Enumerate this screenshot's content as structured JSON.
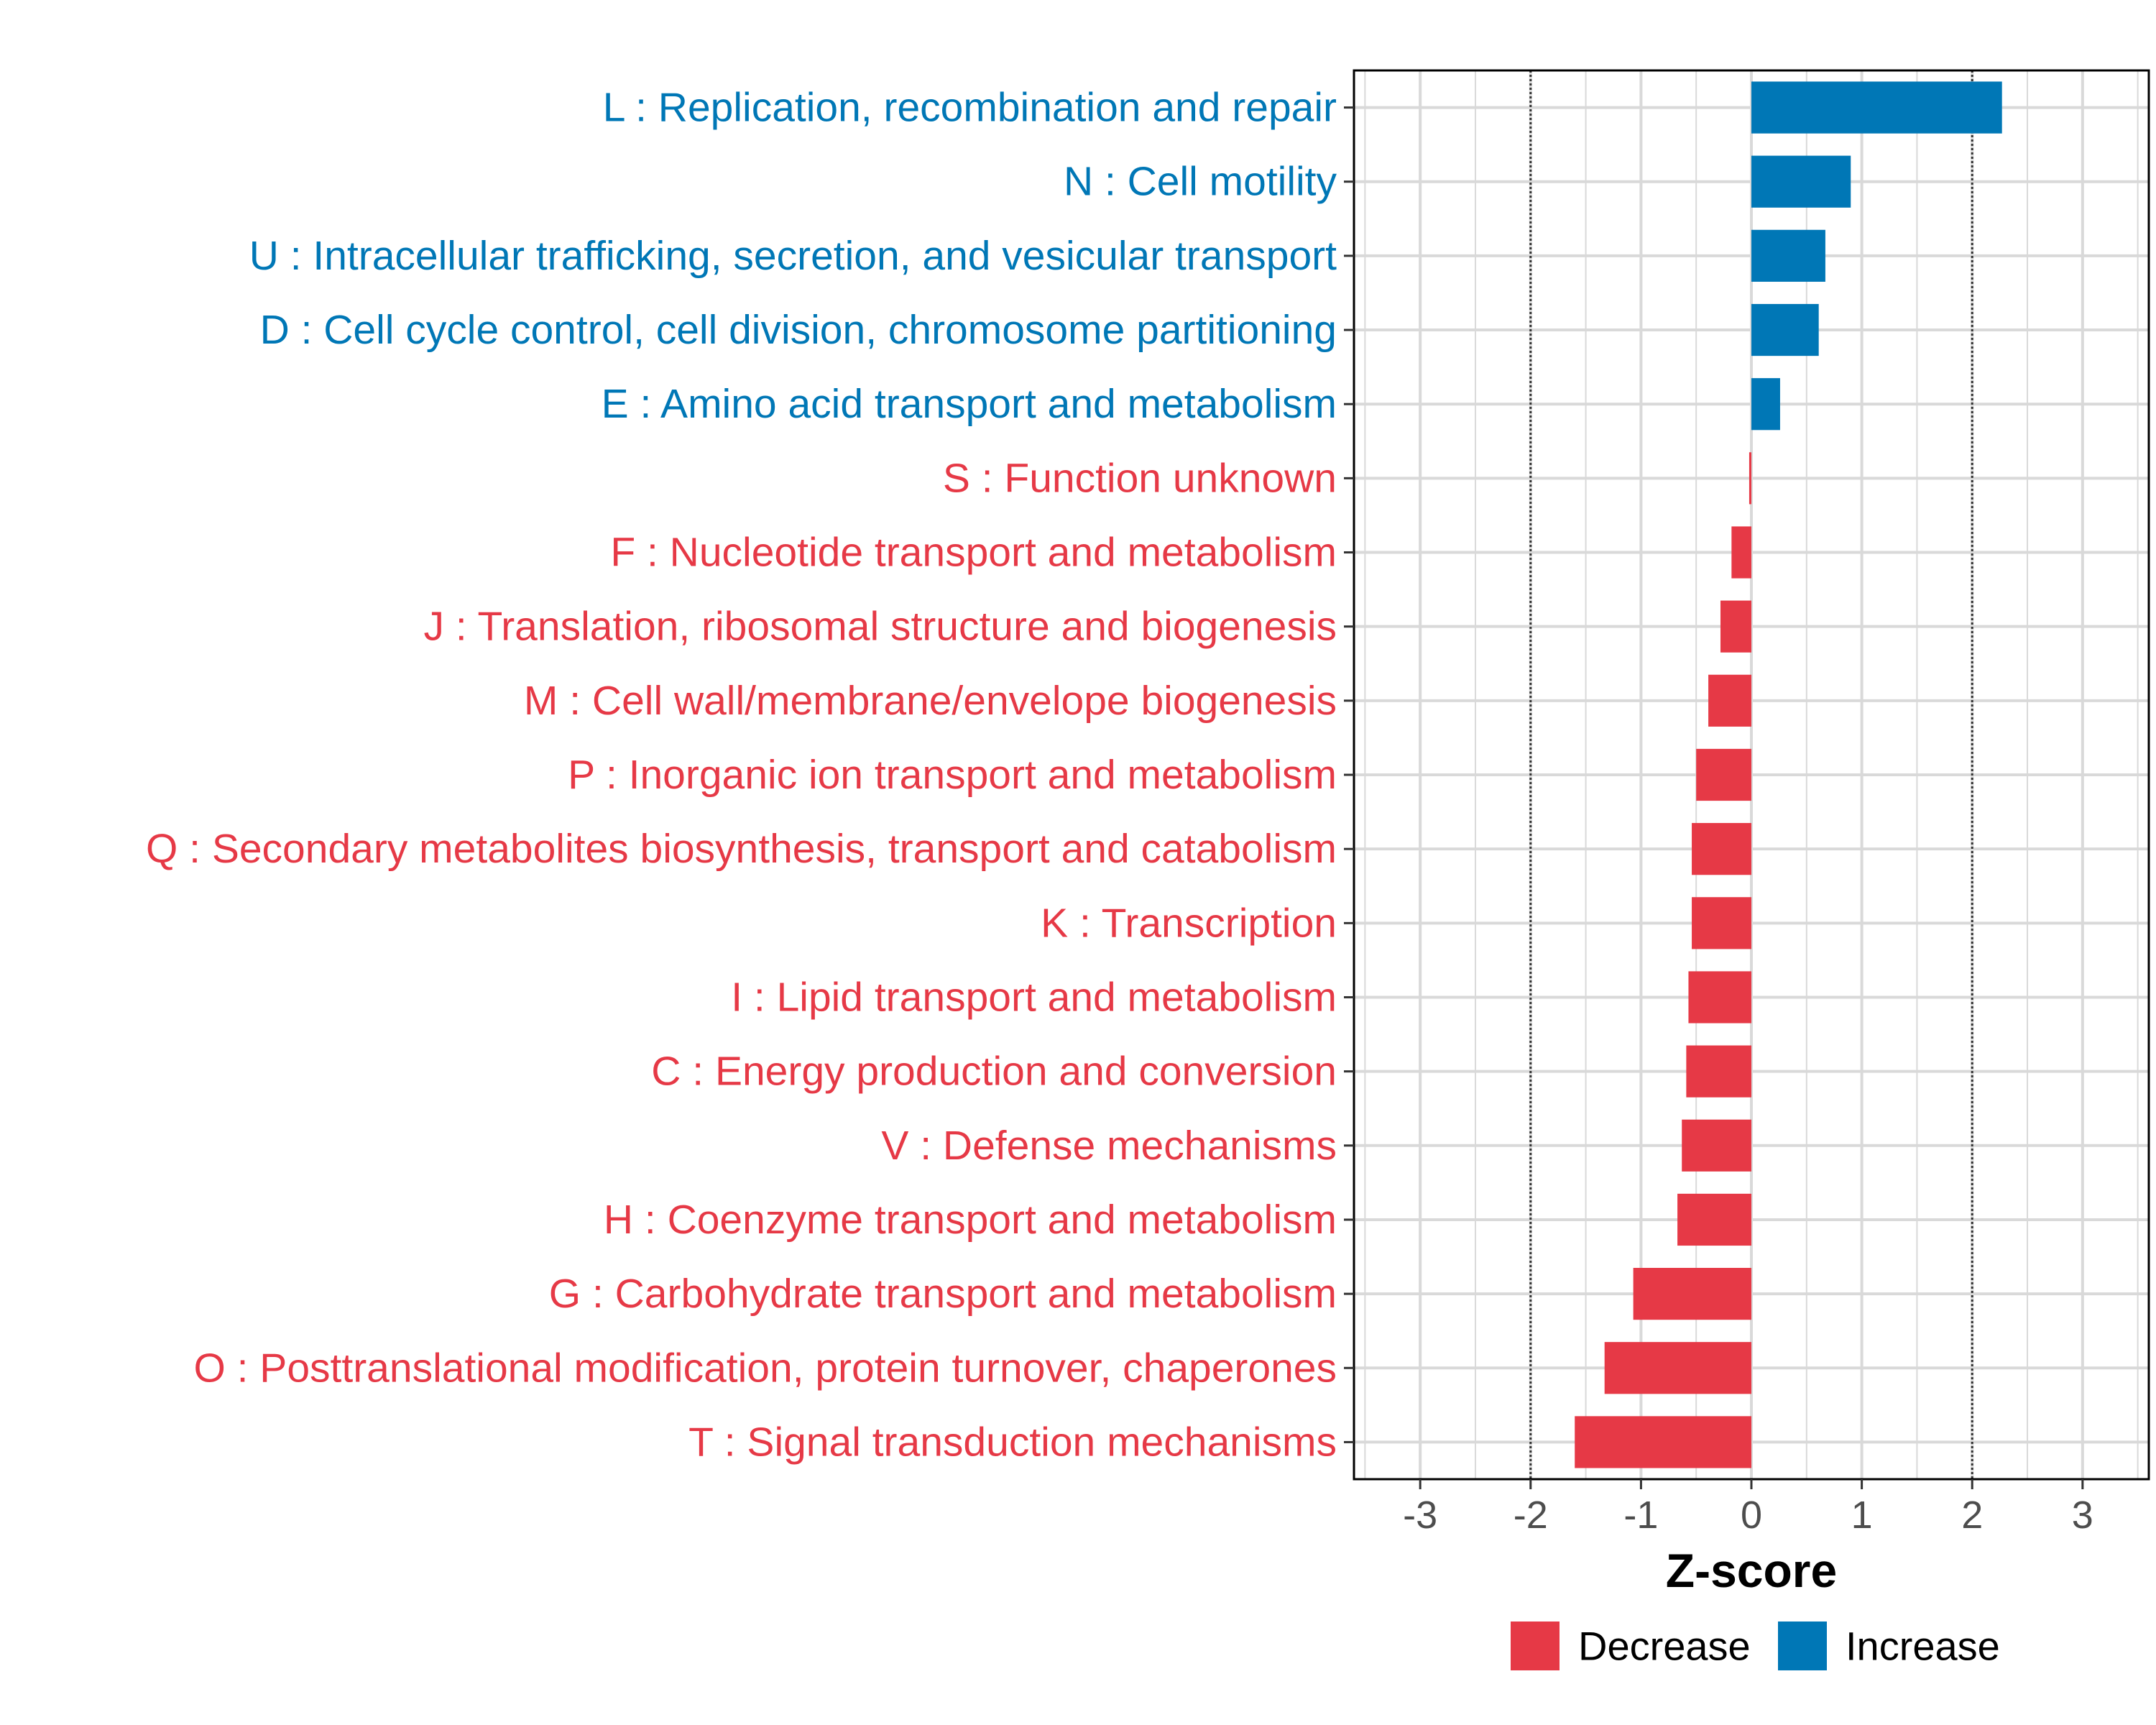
{
  "chart_data": {
    "type": "bar",
    "orientation": "horizontal",
    "xlabel": "Z-score",
    "xlim": [
      -3.6,
      3.6
    ],
    "xticks": [
      -3,
      -2,
      -1,
      0,
      1,
      2,
      3
    ],
    "reference_lines": [
      -2,
      2
    ],
    "grid": true,
    "colors": {
      "Decrease": "#E63946",
      "Increase": "#0077B6"
    },
    "legend": {
      "position": "bottom-right",
      "entries": [
        {
          "label": "Decrease",
          "color": "#E63946"
        },
        {
          "label": "Increase",
          "color": "#0077B6"
        }
      ]
    },
    "categories": [
      {
        "label": "L : Replication, recombination and repair",
        "value": 2.27,
        "group": "Increase"
      },
      {
        "label": "N : Cell motility",
        "value": 0.9,
        "group": "Increase"
      },
      {
        "label": "U : Intracellular trafficking, secretion, and vesicular transport",
        "value": 0.67,
        "group": "Increase"
      },
      {
        "label": "D : Cell cycle control, cell division, chromosome partitioning",
        "value": 0.61,
        "group": "Increase"
      },
      {
        "label": "E : Amino acid transport and metabolism",
        "value": 0.26,
        "group": "Increase"
      },
      {
        "label": "S : Function unknown",
        "value": -0.02,
        "group": "Decrease"
      },
      {
        "label": "F : Nucleotide transport and metabolism",
        "value": -0.18,
        "group": "Decrease"
      },
      {
        "label": "J : Translation, ribosomal structure and biogenesis",
        "value": -0.28,
        "group": "Decrease"
      },
      {
        "label": "M : Cell wall/membrane/envelope biogenesis",
        "value": -0.39,
        "group": "Decrease"
      },
      {
        "label": "P : Inorganic ion transport and metabolism",
        "value": -0.5,
        "group": "Decrease"
      },
      {
        "label": "Q : Secondary metabolites biosynthesis, transport and catabolism",
        "value": -0.54,
        "group": "Decrease"
      },
      {
        "label": "K : Transcription",
        "value": -0.54,
        "group": "Decrease"
      },
      {
        "label": "I : Lipid transport and metabolism",
        "value": -0.57,
        "group": "Decrease"
      },
      {
        "label": "C : Energy production and conversion",
        "value": -0.59,
        "group": "Decrease"
      },
      {
        "label": "V : Defense mechanisms",
        "value": -0.63,
        "group": "Decrease"
      },
      {
        "label": "H : Coenzyme transport and metabolism",
        "value": -0.67,
        "group": "Decrease"
      },
      {
        "label": "G : Carbohydrate transport and metabolism",
        "value": -1.07,
        "group": "Decrease"
      },
      {
        "label": "O : Posttranslational modification, protein turnover, chaperones",
        "value": -1.33,
        "group": "Decrease"
      },
      {
        "label": "T : Signal transduction mechanisms",
        "value": -1.6,
        "group": "Decrease"
      }
    ]
  }
}
